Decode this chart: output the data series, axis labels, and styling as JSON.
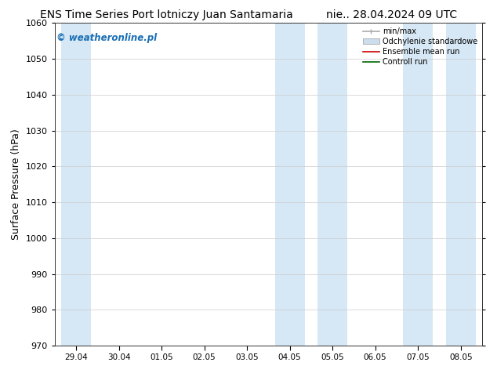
{
  "title_left": "ENS Time Series Port lotniczy Juan Santamaria",
  "title_right": "nie.. 28.04.2024 09 UTC",
  "ylabel": "Surface Pressure (hPa)",
  "ylim": [
    970,
    1060
  ],
  "yticks": [
    970,
    980,
    990,
    1000,
    1010,
    1020,
    1030,
    1040,
    1050,
    1060
  ],
  "xtick_labels": [
    "29.04",
    "30.04",
    "01.05",
    "02.05",
    "03.05",
    "04.05",
    "05.05",
    "06.05",
    "07.05",
    "08.05"
  ],
  "shade_color": "#d6e8f5",
  "watermark": "© weatheronline.pl",
  "watermark_color": "#1a6eb5",
  "legend_entries": [
    {
      "label": "min/max",
      "color": "#aaaaaa",
      "lw": 1.2,
      "style": "minmax"
    },
    {
      "label": "Odchylenie standardowe",
      "color": "#ccddee",
      "lw": 6,
      "style": "band"
    },
    {
      "label": "Ensemble mean run",
      "color": "#cc0000",
      "lw": 1.2,
      "style": "line"
    },
    {
      "label": "Controll run",
      "color": "#006600",
      "lw": 1.2,
      "style": "line"
    }
  ],
  "bg_color": "#ffffff",
  "title_fontsize": 10,
  "axis_label_fontsize": 9
}
